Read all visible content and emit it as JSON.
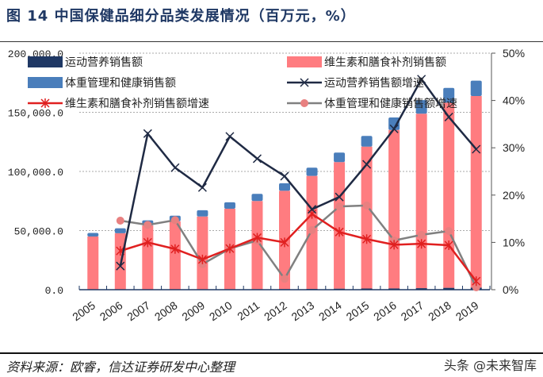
{
  "title": "图 14 中国保健品细分品类发展情况（百万元，%）",
  "source": "资料来源：欧睿，信达证券研发中心整理",
  "watermark": "头条 @未来智库",
  "chart_data": {
    "type": "bar",
    "stacked": true,
    "categories": [
      "2005",
      "2006",
      "2007",
      "2008",
      "2009",
      "2010",
      "2011",
      "2012",
      "2013",
      "2014",
      "2015",
      "2016",
      "2017",
      "2018",
      "2019"
    ],
    "y_left": {
      "range": [
        0,
        200000
      ],
      "ticks": [
        "0.0",
        "50,000.0",
        "100,000.0",
        "150,000.0",
        "200,000.0"
      ],
      "tick_values": [
        0,
        50000,
        100000,
        150000,
        200000
      ]
    },
    "y_right": {
      "range": [
        0,
        50
      ],
      "ticks": [
        "0%",
        "10%",
        "20%",
        "30%",
        "40%",
        "50%"
      ],
      "tick_values": [
        0,
        10,
        20,
        30,
        40,
        50
      ]
    },
    "grid": "horizontal dotted",
    "legend_placement": "top",
    "bar_series": [
      {
        "name": "运动营养销售额",
        "color": "#1f3864",
        "values": [
          200,
          250,
          300,
          350,
          400,
          450,
          500,
          600,
          700,
          900,
          1000,
          1100,
          1300,
          1600,
          1800
        ]
      },
      {
        "name": "维生素和膳食补剂销售额",
        "color": "#ff7c80",
        "values": [
          44800,
          47500,
          54000,
          57500,
          61500,
          68000,
          74500,
          83000,
          95500,
          107000,
          120000,
          134000,
          147500,
          156500,
          162000
        ]
      },
      {
        "name": "体重管理和健康销售额",
        "color": "#4a7ebb",
        "values": [
          3000,
          4200,
          4300,
          4700,
          5300,
          5500,
          6000,
          6400,
          7000,
          8000,
          9000,
          10500,
          11500,
          12500,
          13000
        ]
      }
    ],
    "line_series": [
      {
        "name": "运动营养销售额增速",
        "color": "#1f2a44",
        "marker": "x",
        "values": [
          null,
          5.0,
          33.0,
          25.8,
          21.6,
          32.4,
          27.7,
          24.0,
          17.0,
          19.6,
          26.5,
          34.0,
          44.5,
          36.5,
          29.7
        ]
      },
      {
        "name": "维生素和膳食补剂销售额增速",
        "color": "#e02020",
        "marker": "asterisk",
        "values": [
          null,
          8.2,
          10.0,
          8.6,
          6.4,
          8.7,
          11.0,
          10.0,
          16.0,
          12.2,
          10.7,
          9.5,
          9.7,
          9.4,
          1.8
        ]
      },
      {
        "name": "体重管理和健康销售额增速",
        "color": "#808080",
        "marker": "circle",
        "marker_color": "#e88080",
        "values": [
          null,
          14.6,
          13.7,
          14.7,
          5.4,
          8.7,
          10.4,
          2.3,
          12.6,
          17.6,
          17.8,
          10.4,
          11.6,
          12.4,
          0.5
        ]
      }
    ],
    "legend_order": [
      "运动营养销售额",
      "维生素和膳食补剂销售额",
      "体重管理和健康销售额",
      "运动营养销售额增速",
      "维生素和膳食补剂销售额增速",
      "体重管理和健康销售额增速"
    ]
  }
}
